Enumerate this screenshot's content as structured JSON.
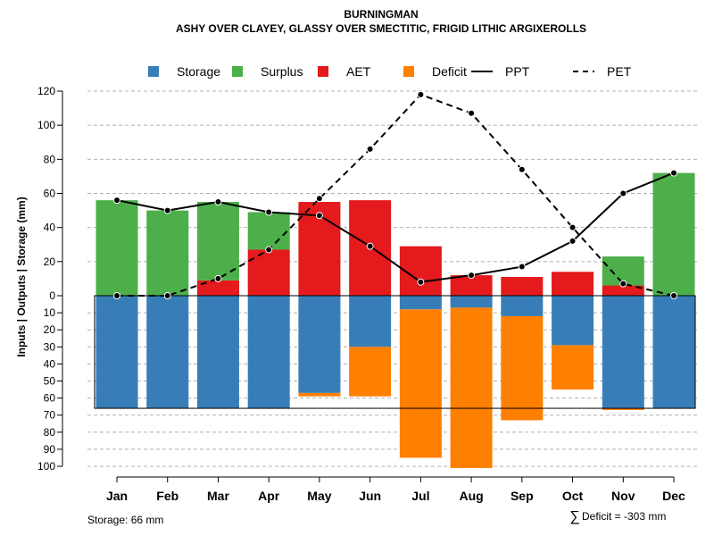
{
  "chart_data": {
    "type": "bar",
    "title": "BURNINGMAN",
    "subtitle": "ASHY OVER CLAYEY, GLASSY OVER SMECTITIC, FRIGID LITHIC ARGIXEROLLS",
    "ylabel": "Inputs | Outputs | Storage    (mm)",
    "categories": [
      "Jan",
      "Feb",
      "Mar",
      "Apr",
      "May",
      "Jun",
      "Jul",
      "Aug",
      "Sep",
      "Oct",
      "Nov",
      "Dec"
    ],
    "upper_axis": {
      "ylim": [
        0,
        120
      ],
      "ticks": [
        "0",
        "20",
        "40",
        "60",
        "80",
        "100",
        "120"
      ]
    },
    "lower_axis": {
      "ylim": [
        0,
        100
      ],
      "ticks": [
        "10",
        "20",
        "30",
        "40",
        "50",
        "60",
        "70",
        "80",
        "90",
        "100"
      ]
    },
    "legend": {
      "position": "top",
      "items": [
        {
          "label": "Storage",
          "kind": "square",
          "color": "#377EB8"
        },
        {
          "label": "Surplus",
          "kind": "square",
          "color": "#4DAF4A"
        },
        {
          "label": "AET",
          "kind": "square",
          "color": "#E41A1C"
        },
        {
          "label": "Deficit",
          "kind": "square",
          "color": "#FF7F00"
        },
        {
          "label": "PPT",
          "kind": "solid-line",
          "color": "#000000"
        },
        {
          "label": "PET",
          "kind": "dashed-line",
          "color": "#000000"
        }
      ]
    },
    "series": [
      {
        "name": "AET",
        "color": "#E41A1C",
        "values": [
          0,
          0,
          9,
          27,
          55,
          56,
          29,
          12,
          11,
          14,
          6,
          0
        ]
      },
      {
        "name": "Surplus",
        "color": "#4DAF4A",
        "values": [
          56,
          50,
          46,
          22,
          0,
          0,
          0,
          0,
          0,
          0,
          17,
          72
        ]
      },
      {
        "name": "Storage",
        "color": "#377EB8",
        "values": [
          66,
          66,
          66,
          66,
          57,
          30,
          8,
          7,
          12,
          29,
          66,
          66
        ]
      },
      {
        "name": "Deficit",
        "color": "#FF7F00",
        "values": [
          0,
          0,
          0,
          0,
          2,
          29,
          87,
          94,
          61,
          26,
          1,
          0
        ]
      },
      {
        "name": "PPT",
        "color": "#000000",
        "values": [
          56,
          50,
          55,
          49,
          47,
          29,
          8,
          12,
          17,
          32,
          60,
          72
        ]
      },
      {
        "name": "PET",
        "color": "#000000",
        "values": [
          0,
          0,
          10,
          27,
          57,
          86,
          118,
          107,
          74,
          40,
          7,
          0
        ]
      }
    ],
    "storage_capacity": 66,
    "storage_note": "Storage: 66 mm",
    "deficit_note": "Deficit = -303 mm",
    "deficit_symbol": "∑",
    "grid": true
  }
}
